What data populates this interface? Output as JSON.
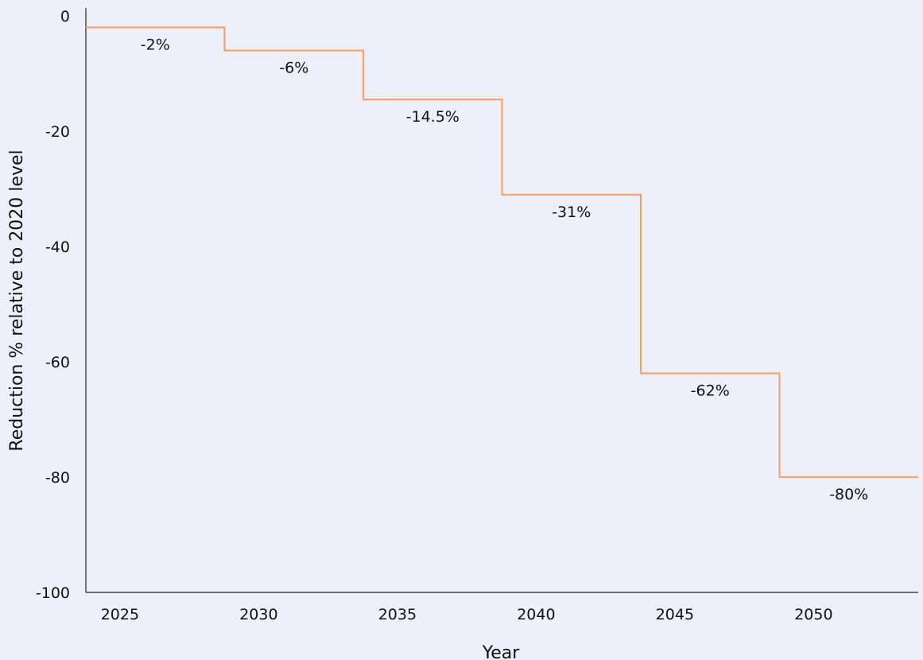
{
  "chart_data": {
    "type": "line",
    "step": true,
    "title": "",
    "xlabel": "Year",
    "ylabel": "Reduction % relative to 2020 level",
    "xlim": [
      2024,
      2054
    ],
    "ylim": [
      -100,
      0
    ],
    "x_ticks": [
      2025,
      2030,
      2035,
      2040,
      2045,
      2050
    ],
    "y_ticks": [
      0,
      -20,
      -40,
      -60,
      -80,
      -100
    ],
    "grid": false,
    "legend": "none",
    "colors": {
      "line": "#f5a36c",
      "axis": "#222222",
      "background": "#edf0f8"
    },
    "series": [
      {
        "segments": [
          {
            "x_start": 2024,
            "x_end": 2029,
            "value": -2,
            "label": "-2%"
          },
          {
            "x_start": 2029,
            "x_end": 2034,
            "value": -6,
            "label": "-6%"
          },
          {
            "x_start": 2034,
            "x_end": 2039,
            "value": -14.5,
            "label": "-14.5%"
          },
          {
            "x_start": 2039,
            "x_end": 2044,
            "value": -31,
            "label": "-31%"
          },
          {
            "x_start": 2044,
            "x_end": 2049,
            "value": -62,
            "label": "-62%"
          },
          {
            "x_start": 2049,
            "x_end": 2054,
            "value": -80,
            "label": "-80%"
          }
        ]
      }
    ]
  }
}
